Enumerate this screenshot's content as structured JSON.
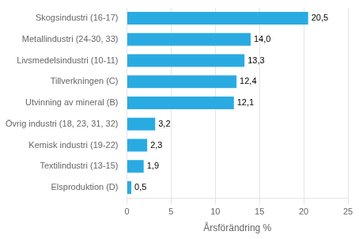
{
  "chart_data": {
    "type": "bar",
    "orientation": "horizontal",
    "categories": [
      "Elsproduktion (D)",
      "Textilindustri (13-15)",
      "Kemisk industri (19-22)",
      "Övrig industri (18, 23, 31, 32)",
      "Utvinning av mineral (B)",
      "Tillverkningen (C)",
      "Livsmedelsindustri (10-11)",
      "Metallindustri (24-30, 33)",
      "Skogsindustri (16-17)"
    ],
    "values": [
      0.5,
      1.9,
      2.3,
      3.2,
      12.1,
      12.4,
      13.3,
      14.0,
      20.5
    ],
    "value_labels": [
      "0,5",
      "1,9",
      "2,3",
      "3,2",
      "12,1",
      "12,4",
      "13,3",
      "14,0",
      "20,5"
    ],
    "data_labels": true,
    "color": "#29abe2",
    "xlabel": "Årsförändring %",
    "xlim": [
      0,
      25
    ],
    "xticks": [
      0,
      5,
      10,
      15,
      20,
      25
    ],
    "grid": true
  }
}
